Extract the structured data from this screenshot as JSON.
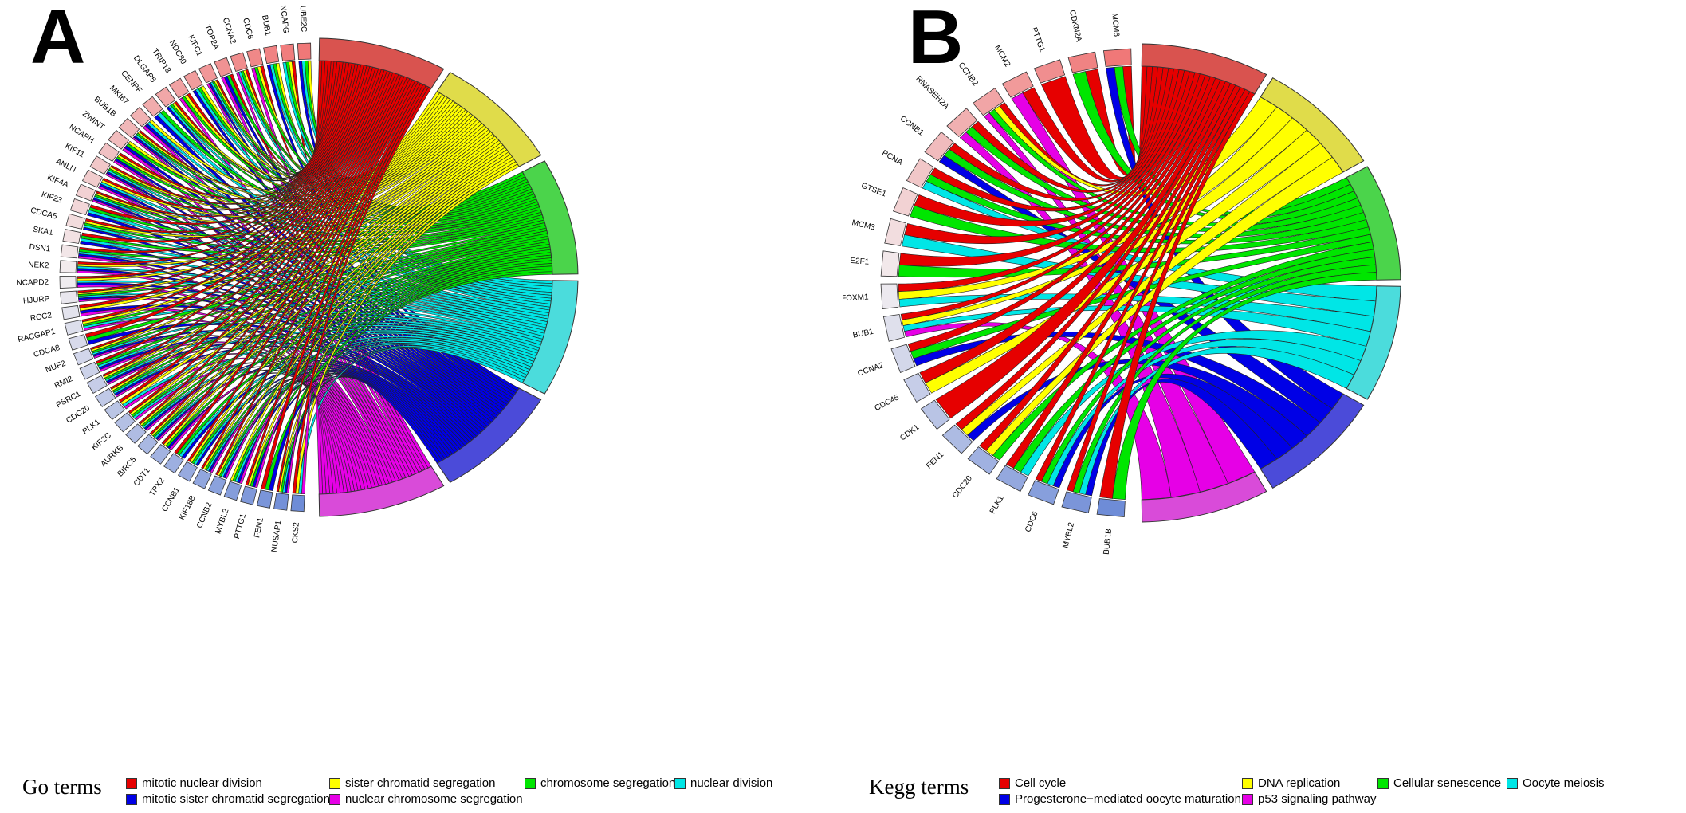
{
  "panels": [
    {
      "id": "A",
      "letter": "A",
      "legend_title": "Go terms",
      "terms": [
        {
          "label": "mitotic nuclear division",
          "color": "#e60000",
          "seg_color": "#d9534f"
        },
        {
          "label": "sister chromatid segregation",
          "color": "#ffff00",
          "seg_color": "#e0dc4a"
        },
        {
          "label": "chromosome segregation",
          "color": "#00e600",
          "seg_color": "#4bd44b"
        },
        {
          "label": "nuclear division",
          "color": "#00e6e6",
          "seg_color": "#4bdcdc"
        },
        {
          "label": "mitotic sister chromatid segregation",
          "color": "#0000e6",
          "seg_color": "#4b4bd9"
        },
        {
          "label": "nuclear chromosome segregation",
          "color": "#e600e6",
          "seg_color": "#d94bd9"
        }
      ],
      "genes": [
        "UBE2C",
        "NCAPG",
        "BUB1",
        "CDC6",
        "CCNA2",
        "TOP2A",
        "KIFC1",
        "NDC80",
        "TRIP13",
        "DLGAP5",
        "CENPF",
        "MKI67",
        "BUB1B",
        "ZWINT",
        "NCAPH",
        "KIF11",
        "ANLN",
        "KIF4A",
        "KIF23",
        "CDCA5",
        "SKA1",
        "DSN1",
        "NEK2",
        "NCAPD2",
        "HJURP",
        "RCC2",
        "RACGAP1",
        "CDCA8",
        "NUF2",
        "RMI2",
        "PSRC1",
        "CDC20",
        "PLK1",
        "KIF2C",
        "AURKB",
        "BIRC5",
        "CDT1",
        "TPX2",
        "CCNB1",
        "KIF18B",
        "CCNB2",
        "MYBL2",
        "PTTG1",
        "FEN1",
        "NUSAP1",
        "CKS2"
      ]
    },
    {
      "id": "B",
      "letter": "B",
      "legend_title": "Kegg terms",
      "terms": [
        {
          "label": "Cell cycle",
          "color": "#e60000",
          "seg_color": "#d9534f"
        },
        {
          "label": "DNA replication",
          "color": "#ffff00",
          "seg_color": "#e0dc4a"
        },
        {
          "label": "Cellular senescence",
          "color": "#00e600",
          "seg_color": "#4bd44b"
        },
        {
          "label": "Oocyte meiosis",
          "color": "#00e6e6",
          "seg_color": "#4bdcdc"
        },
        {
          "label": "Progesterone−mediated oocyte maturation",
          "color": "#0000e6",
          "seg_color": "#4b4bd9"
        },
        {
          "label": "p53 signaling pathway",
          "color": "#e600e6",
          "seg_color": "#d94bd9"
        }
      ],
      "genes": [
        "MCM6",
        "CDKN2A",
        "PTTG1",
        "MCM2",
        "CCNB2",
        "RNASEH2A",
        "CCNB1",
        "PCNA",
        "GTSE1",
        "MCM3",
        "E2F1",
        "FOXM1",
        "BUB1",
        "CCNA2",
        "CDC45",
        "CDK1",
        "FEN1",
        "CDC20",
        "PLK1",
        "CDC6",
        "MYBL2",
        "BUB1B"
      ]
    }
  ]
}
